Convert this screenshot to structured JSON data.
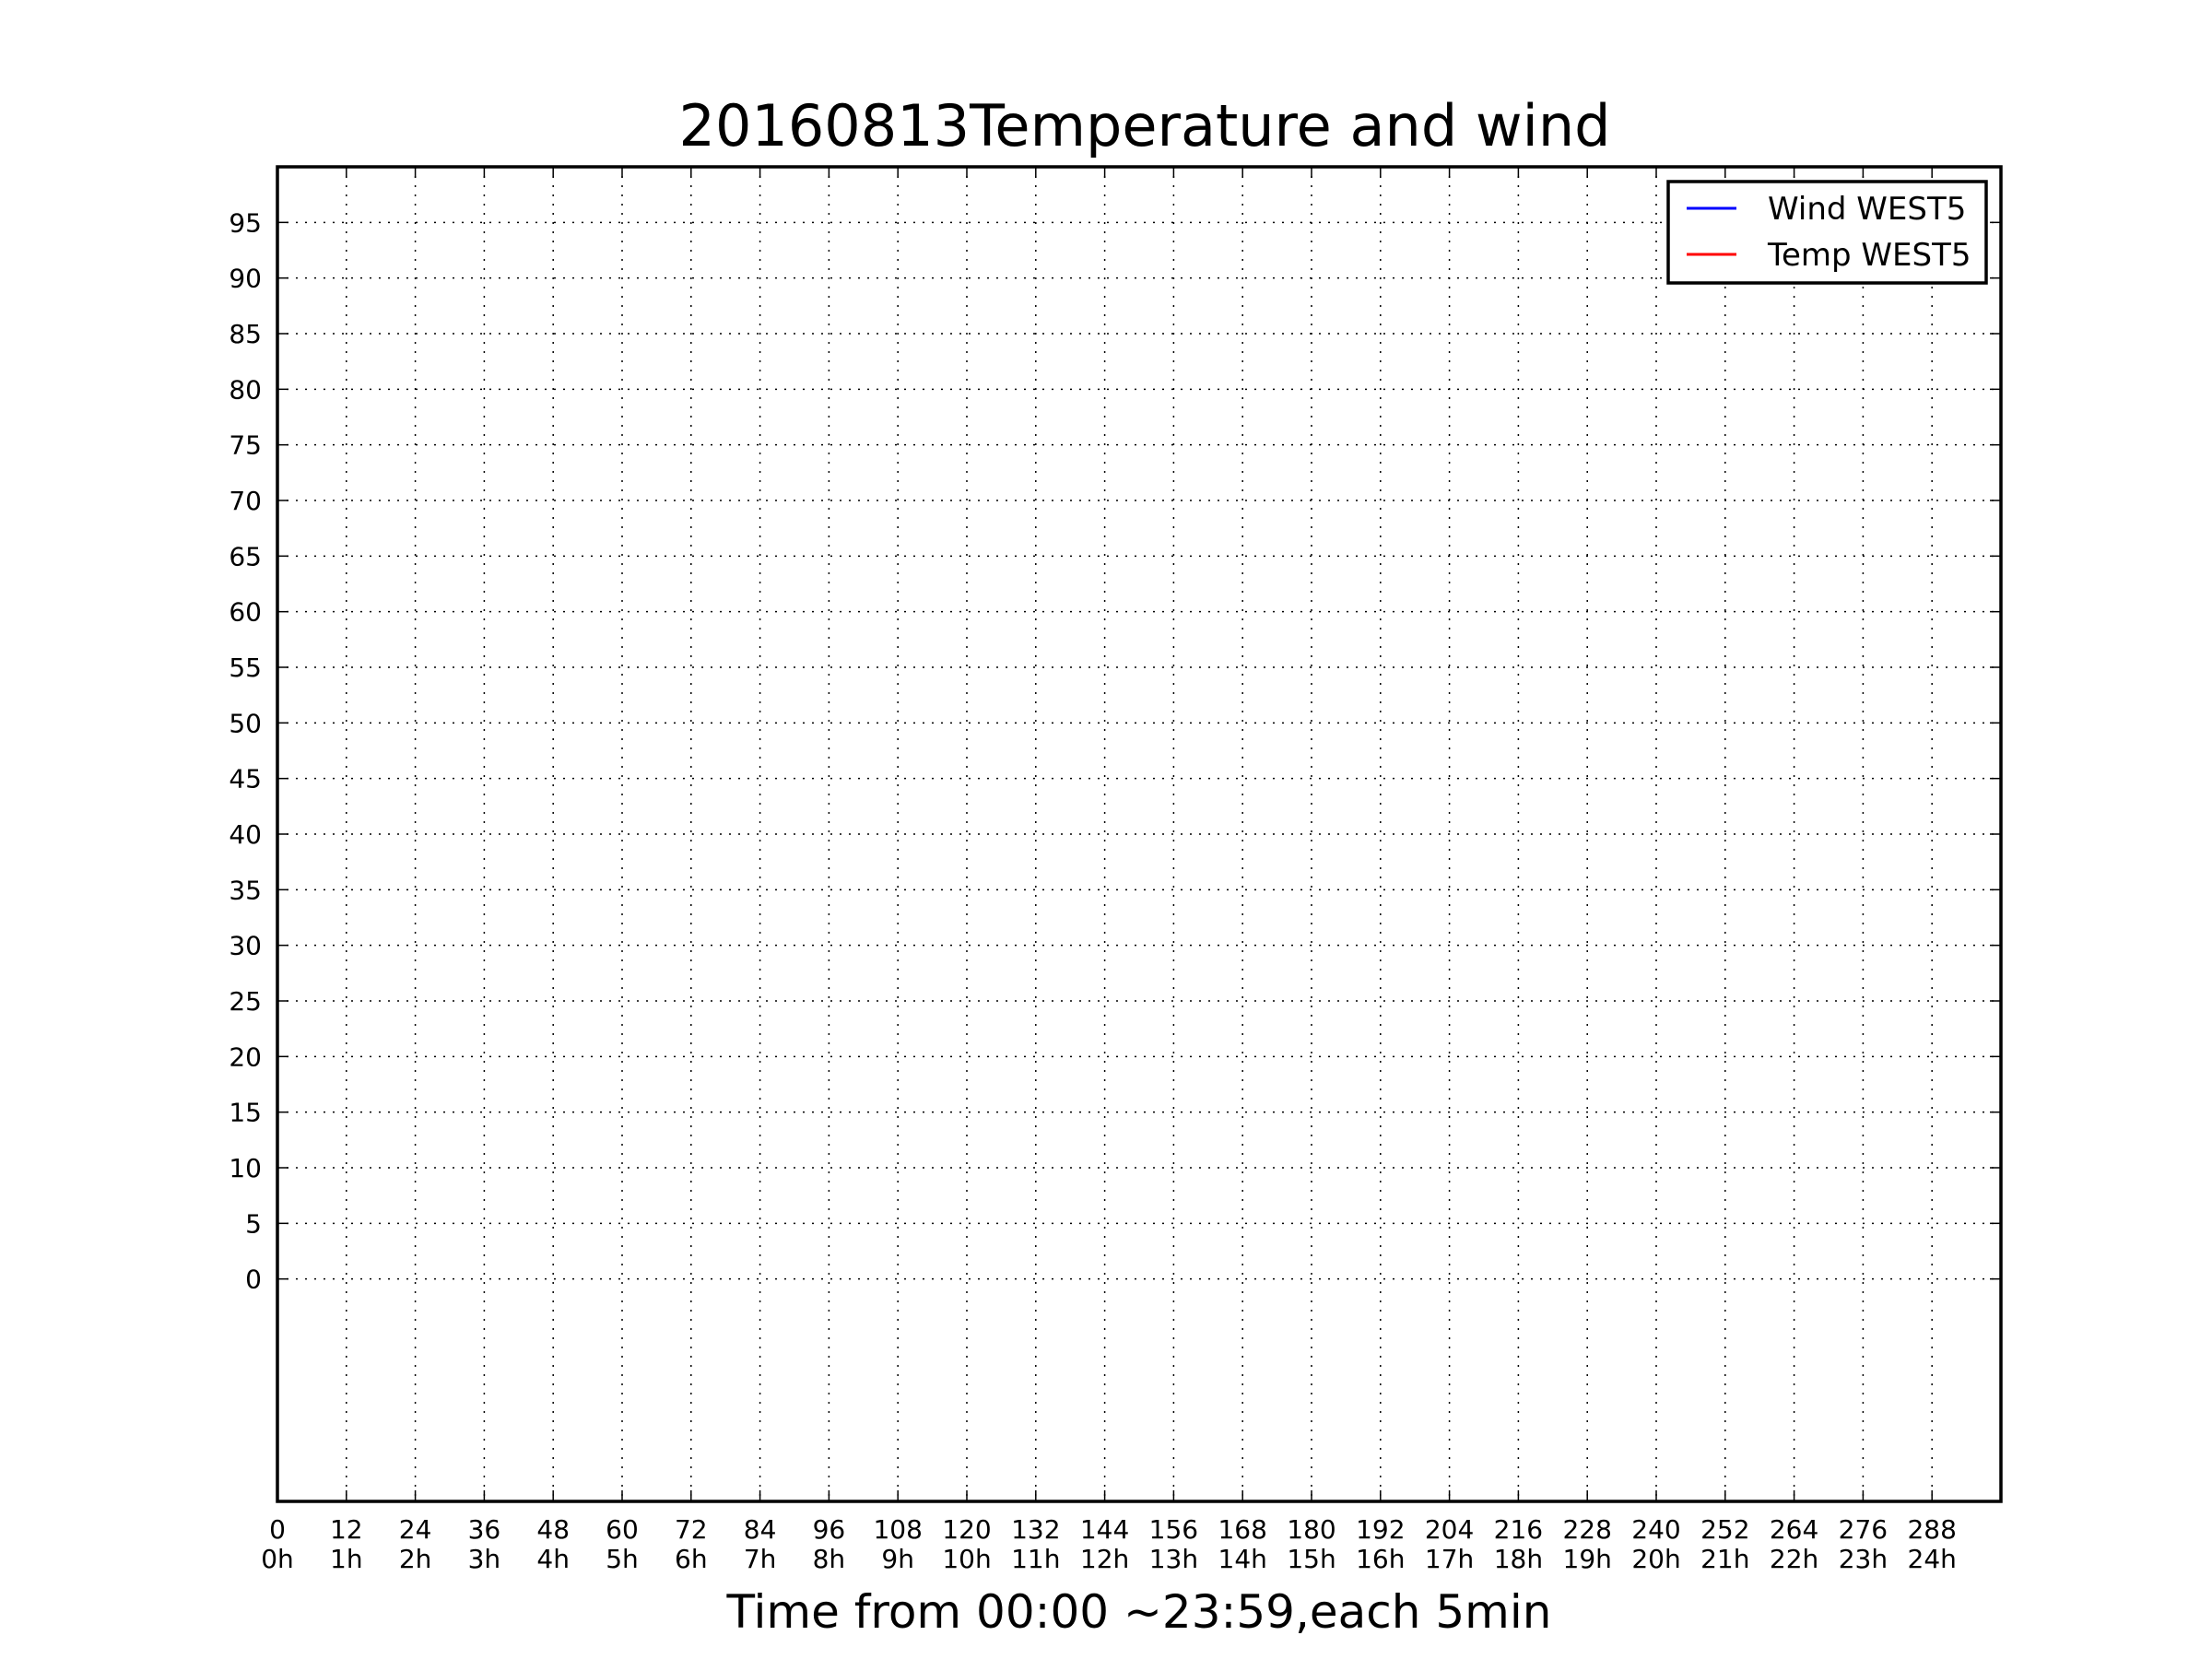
{
  "chart_data": {
    "type": "line",
    "title": "20160813Temperature and wind",
    "xlabel": "Time from 00:00 ~23:59,each 5min",
    "ylabel": "",
    "xlim": [
      0,
      300
    ],
    "ylim": [
      -20,
      100
    ],
    "x_ticks": [
      0,
      12,
      24,
      36,
      48,
      60,
      72,
      84,
      96,
      108,
      120,
      132,
      144,
      156,
      168,
      180,
      192,
      204,
      216,
      228,
      240,
      252,
      264,
      276,
      288
    ],
    "x_tick_labels": [
      "0",
      "12",
      "24",
      "36",
      "48",
      "60",
      "72",
      "84",
      "96",
      "108",
      "120",
      "132",
      "144",
      "156",
      "168",
      "180",
      "192",
      "204",
      "216",
      "228",
      "240",
      "252",
      "264",
      "276",
      "288"
    ],
    "x_tick_sublabels": [
      "0h",
      "1h",
      "2h",
      "3h",
      "4h",
      "5h",
      "6h",
      "7h",
      "8h",
      "9h",
      "10h",
      "11h",
      "12h",
      "13h",
      "14h",
      "15h",
      "16h",
      "17h",
      "18h",
      "19h",
      "20h",
      "21h",
      "22h",
      "23h",
      "24h"
    ],
    "y_ticks": [
      0,
      5,
      10,
      15,
      20,
      25,
      30,
      35,
      40,
      45,
      50,
      55,
      60,
      65,
      70,
      75,
      80,
      85,
      90,
      95
    ],
    "y_tick_labels": [
      "0",
      "5",
      "10",
      "15",
      "20",
      "25",
      "30",
      "35",
      "40",
      "45",
      "50",
      "55",
      "60",
      "65",
      "70",
      "75",
      "80",
      "85",
      "90",
      "95"
    ],
    "grid": true,
    "legend_position": "top-right",
    "series": [
      {
        "name": "Wind WEST5",
        "color": "#0000ff",
        "x": [],
        "values": []
      },
      {
        "name": "Temp WEST5",
        "color": "#ff0000",
        "x": [],
        "values": []
      }
    ]
  }
}
